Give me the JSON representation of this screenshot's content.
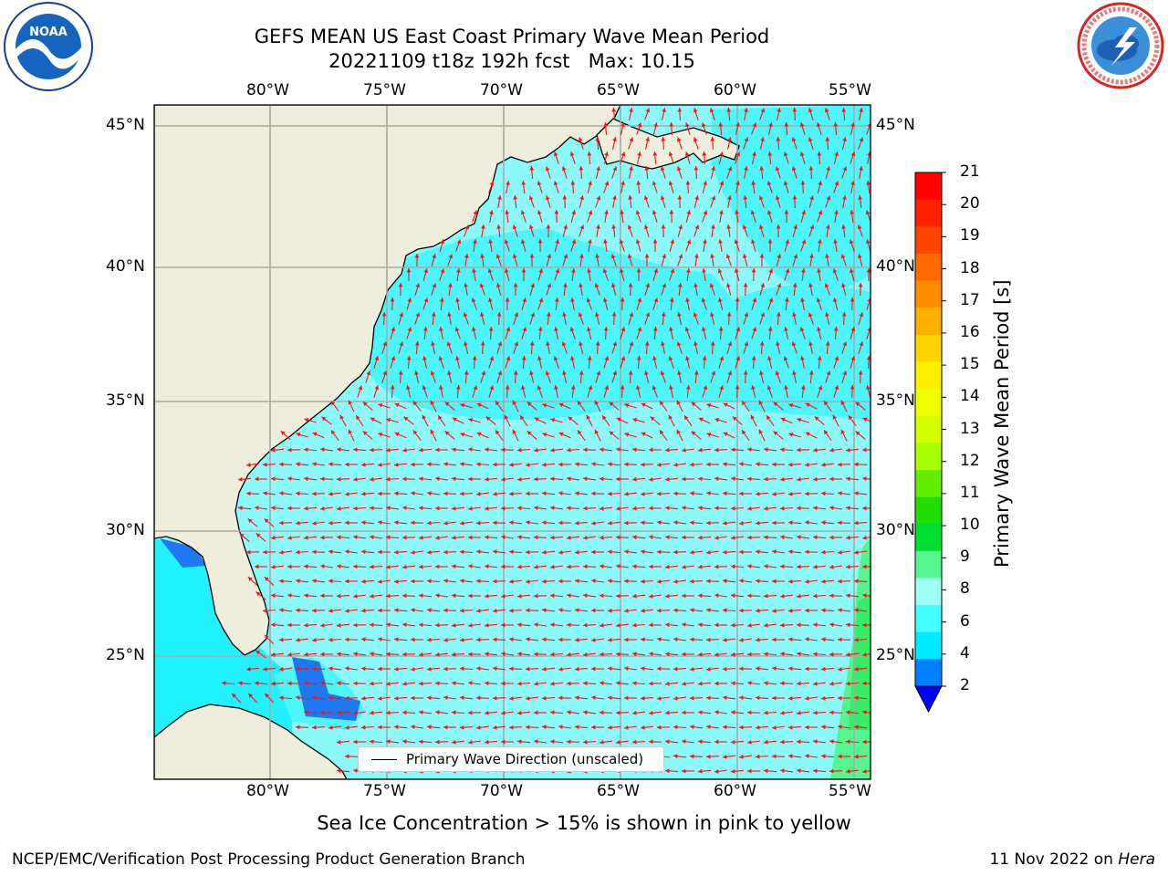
{
  "header": {
    "title_line1": "GEFS MEAN US East Coast Primary Wave Mean Period",
    "title_line2": "20221109 t18z 192h fcst   Max: 10.15"
  },
  "logos": {
    "left": "NOAA",
    "left_ring_text": "NATIONAL OCEANIC AND ATMOSPHERIC ADMINISTRATION · U.S. DEPARTMENT OF COMMERCE",
    "right_ring_text": "NATIONAL WEATHER SERVICE"
  },
  "map": {
    "lon_ticks": [
      "80°W",
      "75°W",
      "70°W",
      "65°W",
      "60°W",
      "55°W"
    ],
    "lat_ticks": [
      "45°N",
      "40°N",
      "35°N",
      "30°N",
      "25°N"
    ],
    "legend_label": "Primary Wave Direction (unscaled)",
    "land_color": "#efeedc",
    "ocean_color": "#8cfafa",
    "arrow_color": "#ff1010"
  },
  "colorbar": {
    "label": "Primary Wave Mean Period [s]",
    "ticks": [
      "21",
      "20",
      "19",
      "18",
      "17",
      "16",
      "15",
      "14",
      "13",
      "12",
      "11",
      "10",
      "9",
      "8",
      "6",
      "4",
      "2"
    ],
    "colors": [
      "#ff0000",
      "#ff2200",
      "#ff4500",
      "#ff6a00",
      "#ff8c00",
      "#ffb000",
      "#ffd400",
      "#fff000",
      "#f0ff00",
      "#d4ff00",
      "#a8ff00",
      "#66ee00",
      "#22dd00",
      "#00dd33",
      "#55f590",
      "#9ffff5",
      "#44ffff",
      "#00ebff",
      "#0080ff"
    ],
    "underflow_color": "#0000ff"
  },
  "footer": {
    "ice_note": "Sea Ice Concentration > 15% is shown in pink to yellow",
    "left": "NCEP/EMC/Verification Post Processing Product Generation Branch",
    "right_prefix": "11 Nov 2022 on ",
    "right_machine": "Hera"
  }
}
